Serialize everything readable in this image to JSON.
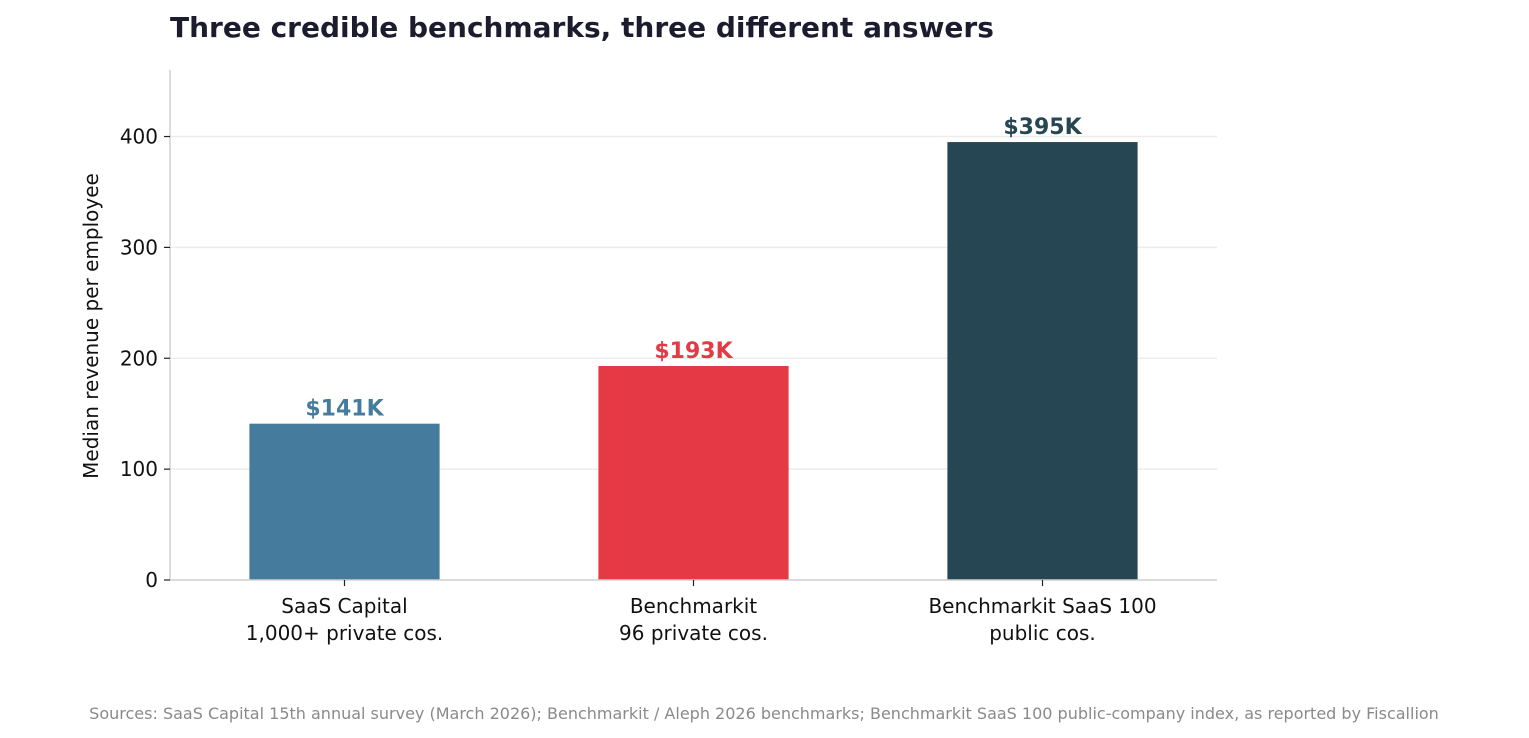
{
  "chart_data": {
    "type": "bar",
    "title": "Three credible benchmarks, three different answers",
    "ylabel": "Median revenue per employee",
    "xlabel": "",
    "ylim": [
      0,
      460
    ],
    "yticks": [
      0,
      100,
      200,
      300,
      400
    ],
    "grid": "horizontal",
    "categories": [
      [
        "SaaS Capital",
        "1,000+ private cos."
      ],
      [
        "Benchmarkit",
        "96 private cos."
      ],
      [
        "Benchmarkit SaaS 100",
        "public cos."
      ]
    ],
    "values": [
      141,
      193,
      395
    ],
    "value_labels": [
      "$141K",
      "$193K",
      "$395K"
    ],
    "colors": [
      "#457b9d",
      "#e63946",
      "#264653"
    ]
  },
  "source": "Sources: SaaS Capital 15th annual survey (March 2026); Benchmarkit / Aleph 2026 benchmarks; Benchmarkit SaaS 100 public-company index, as reported by Fiscallion"
}
